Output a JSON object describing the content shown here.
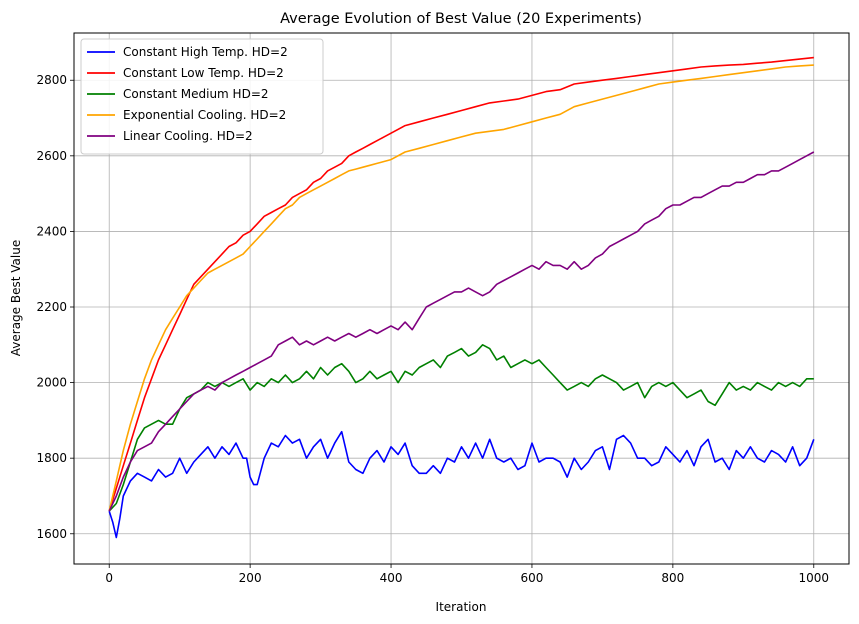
{
  "chart_data": {
    "type": "line",
    "title": "Average Evolution of Best Value (20 Experiments)",
    "xlabel": "Iteration",
    "ylabel": "Average Best Value",
    "xlim": [
      -50,
      1050
    ],
    "ylim": [
      1520,
      2925
    ],
    "x_ticks": [
      0,
      200,
      400,
      600,
      800,
      1000
    ],
    "y_ticks": [
      1600,
      1800,
      2000,
      2200,
      2400,
      2600,
      2800
    ],
    "grid": true,
    "legend_position": "top-left",
    "series": [
      {
        "name": "Constant High Temp. HD=2",
        "color": "#0000ff",
        "x": [
          0,
          5,
          10,
          15,
          20,
          30,
          40,
          50,
          60,
          70,
          80,
          90,
          100,
          110,
          120,
          130,
          140,
          150,
          160,
          170,
          180,
          190,
          195,
          200,
          205,
          210,
          220,
          230,
          240,
          250,
          260,
          270,
          280,
          290,
          300,
          310,
          320,
          330,
          340,
          350,
          360,
          370,
          380,
          390,
          400,
          410,
          420,
          430,
          440,
          450,
          460,
          470,
          480,
          490,
          500,
          510,
          520,
          530,
          540,
          550,
          560,
          570,
          580,
          590,
          600,
          610,
          620,
          630,
          640,
          650,
          660,
          670,
          680,
          690,
          700,
          710,
          720,
          730,
          740,
          750,
          760,
          770,
          780,
          790,
          800,
          810,
          820,
          830,
          840,
          850,
          860,
          870,
          880,
          890,
          900,
          910,
          920,
          930,
          940,
          950,
          960,
          970,
          980,
          990,
          1000
        ],
        "y": [
          1660,
          1630,
          1590,
          1640,
          1700,
          1740,
          1760,
          1750,
          1740,
          1770,
          1750,
          1760,
          1800,
          1760,
          1790,
          1810,
          1830,
          1800,
          1830,
          1810,
          1840,
          1800,
          1800,
          1750,
          1730,
          1730,
          1800,
          1840,
          1830,
          1860,
          1840,
          1850,
          1800,
          1830,
          1850,
          1800,
          1840,
          1870,
          1790,
          1770,
          1760,
          1800,
          1820,
          1790,
          1830,
          1810,
          1840,
          1780,
          1760,
          1760,
          1780,
          1760,
          1800,
          1790,
          1830,
          1800,
          1840,
          1800,
          1850,
          1800,
          1790,
          1800,
          1770,
          1780,
          1840,
          1790,
          1800,
          1800,
          1790,
          1750,
          1800,
          1770,
          1790,
          1820,
          1830,
          1770,
          1850,
          1860,
          1840,
          1800,
          1800,
          1780,
          1790,
          1830,
          1810,
          1790,
          1820,
          1780,
          1830,
          1850,
          1790,
          1800,
          1770,
          1820,
          1800,
          1830,
          1800,
          1790,
          1820,
          1810,
          1790,
          1830,
          1780,
          1800,
          1850
        ]
      },
      {
        "name": "Constant Low Temp. HD=2",
        "color": "#ff0000",
        "x": [
          0,
          10,
          20,
          30,
          40,
          50,
          60,
          70,
          80,
          90,
          100,
          110,
          120,
          130,
          140,
          150,
          160,
          170,
          180,
          190,
          200,
          210,
          220,
          230,
          240,
          250,
          260,
          270,
          280,
          290,
          300,
          310,
          320,
          330,
          340,
          350,
          360,
          370,
          380,
          390,
          400,
          420,
          440,
          460,
          480,
          500,
          520,
          540,
          560,
          580,
          600,
          620,
          640,
          660,
          680,
          700,
          720,
          740,
          760,
          780,
          800,
          820,
          840,
          860,
          880,
          900,
          920,
          940,
          960,
          980,
          1000
        ],
        "y": [
          1660,
          1720,
          1780,
          1840,
          1900,
          1960,
          2010,
          2060,
          2100,
          2140,
          2180,
          2220,
          2260,
          2280,
          2300,
          2320,
          2340,
          2360,
          2370,
          2390,
          2400,
          2420,
          2440,
          2450,
          2460,
          2470,
          2490,
          2500,
          2510,
          2530,
          2540,
          2560,
          2570,
          2580,
          2600,
          2610,
          2620,
          2630,
          2640,
          2650,
          2660,
          2680,
          2690,
          2700,
          2710,
          2720,
          2730,
          2740,
          2745,
          2750,
          2760,
          2770,
          2775,
          2790,
          2795,
          2800,
          2805,
          2810,
          2815,
          2820,
          2825,
          2830,
          2835,
          2838,
          2840,
          2842,
          2845,
          2848,
          2852,
          2856,
          2860
        ]
      },
      {
        "name": "Constant Medium HD=2",
        "color": "#008000",
        "x": [
          0,
          10,
          20,
          30,
          40,
          50,
          60,
          70,
          80,
          90,
          100,
          110,
          120,
          130,
          140,
          150,
          160,
          170,
          180,
          190,
          200,
          210,
          220,
          230,
          240,
          250,
          260,
          270,
          280,
          290,
          300,
          310,
          320,
          330,
          340,
          350,
          360,
          370,
          380,
          390,
          400,
          410,
          420,
          430,
          440,
          450,
          460,
          470,
          480,
          490,
          500,
          510,
          520,
          530,
          540,
          550,
          560,
          570,
          580,
          590,
          600,
          610,
          620,
          630,
          640,
          650,
          660,
          670,
          680,
          690,
          700,
          710,
          720,
          730,
          740,
          750,
          760,
          770,
          780,
          790,
          800,
          810,
          820,
          830,
          840,
          850,
          860,
          870,
          880,
          890,
          900,
          910,
          920,
          930,
          940,
          950,
          960,
          970,
          980,
          990,
          1000
        ],
        "y": [
          1660,
          1680,
          1730,
          1790,
          1850,
          1880,
          1890,
          1900,
          1890,
          1890,
          1930,
          1960,
          1970,
          1980,
          2000,
          1990,
          2000,
          1990,
          2000,
          2010,
          1980,
          2000,
          1990,
          2010,
          2000,
          2020,
          2000,
          2010,
          2030,
          2010,
          2040,
          2020,
          2040,
          2050,
          2030,
          2000,
          2010,
          2030,
          2010,
          2020,
          2030,
          2000,
          2030,
          2020,
          2040,
          2050,
          2060,
          2040,
          2070,
          2080,
          2090,
          2070,
          2080,
          2100,
          2090,
          2060,
          2070,
          2040,
          2050,
          2060,
          2050,
          2060,
          2040,
          2020,
          2000,
          1980,
          1990,
          2000,
          1990,
          2010,
          2020,
          2010,
          2000,
          1980,
          1990,
          2000,
          1960,
          1990,
          2000,
          1990,
          2000,
          1980,
          1960,
          1970,
          1980,
          1950,
          1940,
          1970,
          2000,
          1980,
          1990,
          1980,
          2000,
          1990,
          1980,
          2000,
          1990,
          2000,
          1990,
          2010,
          2010
        ]
      },
      {
        "name": "Exponential Cooling. HD=2",
        "color": "#ffa500",
        "x": [
          0,
          10,
          20,
          30,
          40,
          50,
          60,
          70,
          80,
          90,
          100,
          110,
          120,
          130,
          140,
          150,
          160,
          170,
          180,
          190,
          200,
          210,
          220,
          230,
          240,
          250,
          260,
          270,
          280,
          290,
          300,
          310,
          320,
          330,
          340,
          350,
          360,
          370,
          380,
          390,
          400,
          420,
          440,
          460,
          480,
          500,
          520,
          540,
          560,
          580,
          600,
          620,
          640,
          660,
          680,
          700,
          720,
          740,
          760,
          780,
          800,
          820,
          840,
          860,
          880,
          900,
          920,
          940,
          960,
          980,
          1000
        ],
        "y": [
          1660,
          1740,
          1820,
          1890,
          1950,
          2010,
          2060,
          2100,
          2140,
          2170,
          2200,
          2230,
          2250,
          2270,
          2290,
          2300,
          2310,
          2320,
          2330,
          2340,
          2360,
          2380,
          2400,
          2420,
          2440,
          2460,
          2470,
          2490,
          2500,
          2510,
          2520,
          2530,
          2540,
          2550,
          2560,
          2565,
          2570,
          2575,
          2580,
          2585,
          2590,
          2610,
          2620,
          2630,
          2640,
          2650,
          2660,
          2665,
          2670,
          2680,
          2690,
          2700,
          2710,
          2730,
          2740,
          2750,
          2760,
          2770,
          2780,
          2790,
          2795,
          2800,
          2805,
          2810,
          2815,
          2820,
          2825,
          2830,
          2835,
          2838,
          2840
        ]
      },
      {
        "name": "Linear Cooling. HD=2",
        "color": "#800080",
        "x": [
          0,
          10,
          20,
          30,
          40,
          50,
          60,
          70,
          80,
          90,
          100,
          110,
          120,
          130,
          140,
          150,
          160,
          170,
          180,
          190,
          200,
          210,
          220,
          230,
          240,
          250,
          260,
          270,
          280,
          290,
          300,
          310,
          320,
          330,
          340,
          350,
          360,
          370,
          380,
          390,
          400,
          410,
          420,
          430,
          440,
          450,
          460,
          470,
          480,
          490,
          500,
          510,
          520,
          530,
          540,
          550,
          560,
          570,
          580,
          590,
          600,
          610,
          620,
          630,
          640,
          650,
          660,
          670,
          680,
          690,
          700,
          710,
          720,
          730,
          740,
          750,
          760,
          770,
          780,
          790,
          800,
          810,
          820,
          830,
          840,
          850,
          860,
          870,
          880,
          890,
          900,
          910,
          920,
          930,
          940,
          950,
          960,
          970,
          980,
          990,
          1000
        ],
        "y": [
          1660,
          1700,
          1750,
          1790,
          1820,
          1830,
          1840,
          1870,
          1890,
          1910,
          1930,
          1950,
          1970,
          1980,
          1990,
          1980,
          2000,
          2010,
          2020,
          2030,
          2040,
          2050,
          2060,
          2070,
          2100,
          2110,
          2120,
          2100,
          2110,
          2100,
          2110,
          2120,
          2110,
          2120,
          2130,
          2120,
          2130,
          2140,
          2130,
          2140,
          2150,
          2140,
          2160,
          2140,
          2170,
          2200,
          2210,
          2220,
          2230,
          2240,
          2240,
          2250,
          2240,
          2230,
          2240,
          2260,
          2270,
          2280,
          2290,
          2300,
          2310,
          2300,
          2320,
          2310,
          2310,
          2300,
          2320,
          2300,
          2310,
          2330,
          2340,
          2360,
          2370,
          2380,
          2390,
          2400,
          2420,
          2430,
          2440,
          2460,
          2470,
          2470,
          2480,
          2490,
          2490,
          2500,
          2510,
          2520,
          2520,
          2530,
          2530,
          2540,
          2550,
          2550,
          2560,
          2560,
          2570,
          2580,
          2590,
          2600,
          2610
        ]
      }
    ]
  }
}
